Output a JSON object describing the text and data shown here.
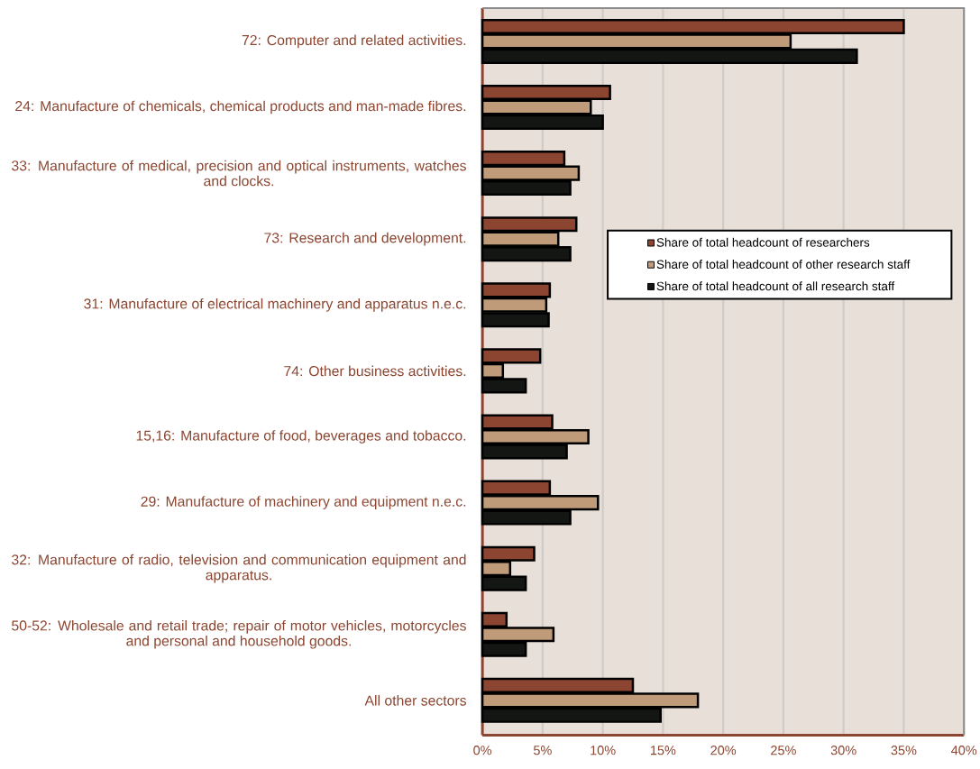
{
  "chart_data": {
    "type": "bar",
    "orientation": "horizontal",
    "categories": [
      "72: Computer and related activities.",
      "24: Manufacture of chemicals, chemical products and man-made fibres.",
      "33: Manufacture of medical, precision and optical instruments, watches and clocks.",
      "73: Research and development.",
      "31: Manufacture of electrical machinery and apparatus n.e.c.",
      "74: Other business activities.",
      "15,16: Manufacture of food, beverages and tobacco.",
      "29: Manufacture of machinery and equipment n.e.c.",
      "32: Manufacture of radio, television and communication equipment and apparatus.",
      "50-52: Wholesale and retail trade; repair of motor vehicles, motorcycles and personal and household goods.",
      "All other sectors"
    ],
    "series": [
      {
        "name": "Share of total headcount of researchers",
        "color": "#8b4530",
        "values": [
          35.0,
          10.6,
          6.8,
          7.8,
          5.6,
          4.8,
          5.8,
          5.6,
          4.3,
          2.0,
          12.5
        ]
      },
      {
        "name": "Share of total headcount of other research staff",
        "color": "#bf9b7a",
        "values": [
          25.6,
          9.0,
          8.0,
          6.3,
          5.3,
          1.7,
          8.8,
          9.6,
          2.3,
          5.9,
          17.9
        ]
      },
      {
        "name": "Share of total headcount of all research staff",
        "color": "#141614",
        "values": [
          31.1,
          10.0,
          7.3,
          7.3,
          5.5,
          3.6,
          7.0,
          7.3,
          3.6,
          3.6,
          14.8
        ]
      }
    ],
    "xlim": [
      0,
      40
    ],
    "xticks": [
      {
        "value": 0,
        "label": "0%"
      },
      {
        "value": 5,
        "label": "5%"
      },
      {
        "value": 10,
        "label": "10%"
      },
      {
        "value": 15,
        "label": "15%"
      },
      {
        "value": 20,
        "label": "20%"
      },
      {
        "value": 25,
        "label": "25%"
      },
      {
        "value": 30,
        "label": "30%"
      },
      {
        "value": 35,
        "label": "35%"
      },
      {
        "value": 40,
        "label": "40%"
      }
    ],
    "grid": "x",
    "legend": "right"
  }
}
